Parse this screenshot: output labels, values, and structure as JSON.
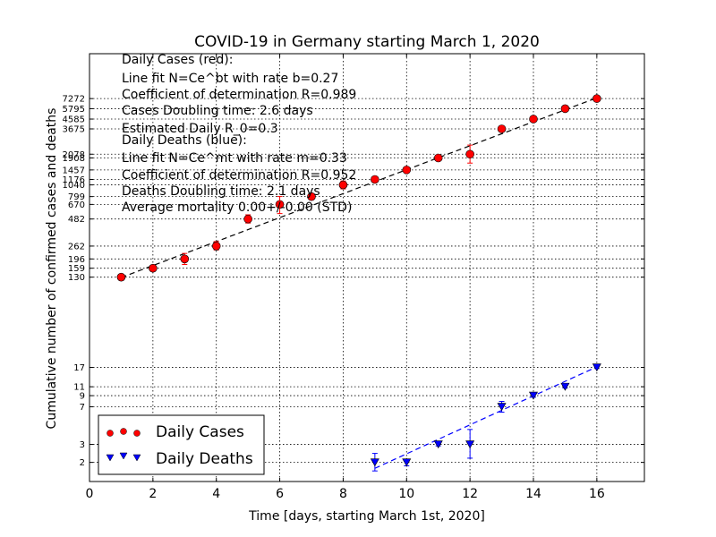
{
  "chart_data": {
    "type": "scatter",
    "title": "COVID-19 in Germany starting March 1, 2020",
    "xlabel": "Time [days, starting March 1st, 2020]",
    "ylabel": "Cumulative number of confirmed cases and deaths",
    "xlim": [
      0,
      17.5
    ],
    "ylim": [
      1.3,
      20000
    ],
    "yscale": "log",
    "grid": true,
    "legend_position": "bottom-left",
    "x_ticks": [
      "0",
      "2",
      "4",
      "6",
      "8",
      "10",
      "12",
      "14",
      "16"
    ],
    "y_ticks": [
      "2",
      "3",
      "7",
      "9",
      "11",
      "17",
      "130",
      "159",
      "196",
      "262",
      "482",
      "670",
      "799",
      "1040",
      "1176",
      "1457",
      "1908",
      "2078",
      "3675",
      "4585",
      "5795",
      "7272"
    ],
    "series": [
      {
        "name": "Daily Cases",
        "color": "#ff0000",
        "marker": "circle",
        "x": [
          1,
          2,
          3,
          4,
          5,
          6,
          7,
          8,
          9,
          10,
          11,
          12,
          13,
          14,
          15,
          16
        ],
        "y": [
          130,
          159,
          196,
          262,
          482,
          670,
          799,
          1040,
          1176,
          1457,
          1908,
          2078,
          3675,
          4585,
          5795,
          7272
        ],
        "yerr_low": [
          130,
          150,
          173,
          240,
          440,
          545,
          745,
          950,
          1160,
          1440,
          1880,
          1700,
          3640,
          4560,
          5770,
          7250
        ],
        "yerr_high": [
          130,
          168,
          222,
          290,
          530,
          800,
          850,
          1135,
          1190,
          1475,
          1935,
          2550,
          3710,
          4610,
          5820,
          7290
        ]
      },
      {
        "name": "Daily Deaths",
        "color": "#0000ff",
        "marker": "triangle-down",
        "x": [
          9,
          10,
          11,
          12,
          13,
          14,
          15,
          16
        ],
        "y": [
          2,
          2,
          3,
          3,
          7,
          9,
          11,
          17
        ],
        "yerr_low": [
          1.65,
          1.85,
          2.9,
          2.2,
          6.2,
          8.7,
          10.7,
          16.6
        ],
        "yerr_high": [
          2.45,
          2.15,
          3.1,
          4.2,
          7.9,
          9.3,
          11.3,
          17.4
        ]
      }
    ],
    "fit_lines": [
      {
        "color": "#000000",
        "x": [
          1,
          16.1
        ],
        "y": [
          129,
          7600
        ]
      },
      {
        "color": "#0000ff",
        "x": [
          9,
          16.1
        ],
        "y": [
          1.75,
          17.8
        ]
      }
    ],
    "annotations": [
      "Daily Cases (red):",
      "Line fit N=Ce^bt with rate b=0.27",
      "Coefficient of determination R=0.989",
      "Cases Doubling time: 2.6 days",
      "Estimated Daily R_0=0.3",
      "Daily Deaths (blue):",
      "Line fit N=Ce^mt with rate m=0.33",
      "Coefficient of determination R=0.952",
      "Deaths Doubling time: 2.1 days",
      "Average mortality 0.00+/-0.00 (STD)"
    ]
  }
}
